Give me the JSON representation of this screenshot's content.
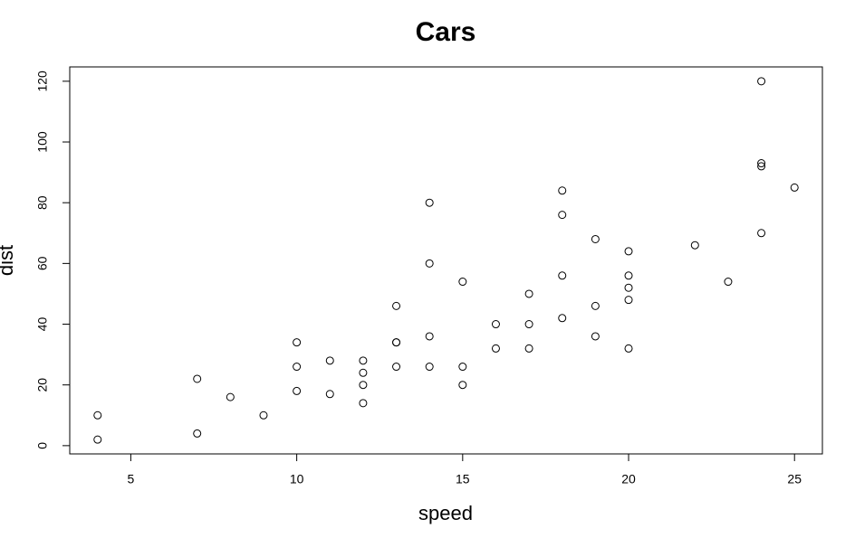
{
  "chart_data": {
    "type": "scatter",
    "title": "Cars",
    "xlabel": "speed",
    "ylabel": "dist",
    "x": [
      4,
      4,
      7,
      7,
      8,
      9,
      10,
      10,
      10,
      11,
      11,
      12,
      12,
      12,
      12,
      13,
      13,
      13,
      13,
      14,
      14,
      14,
      14,
      15,
      15,
      15,
      16,
      16,
      17,
      17,
      17,
      18,
      18,
      18,
      18,
      19,
      19,
      19,
      20,
      20,
      20,
      20,
      20,
      22,
      23,
      24,
      24,
      24,
      24,
      25
    ],
    "values": [
      2,
      10,
      4,
      22,
      16,
      10,
      18,
      26,
      34,
      17,
      28,
      14,
      20,
      24,
      28,
      26,
      34,
      34,
      46,
      26,
      36,
      60,
      80,
      20,
      26,
      54,
      32,
      40,
      32,
      40,
      50,
      42,
      56,
      76,
      84,
      36,
      46,
      68,
      32,
      48,
      52,
      56,
      64,
      66,
      54,
      70,
      92,
      93,
      120,
      85
    ],
    "color": "#000000",
    "xlim": [
      3.16,
      25.84
    ],
    "xticks": [
      5,
      10,
      15,
      20,
      25
    ],
    "ylim": [
      -2.72,
      124.72
    ],
    "yticks": [
      0,
      20,
      40,
      60,
      80,
      100,
      120
    ]
  }
}
